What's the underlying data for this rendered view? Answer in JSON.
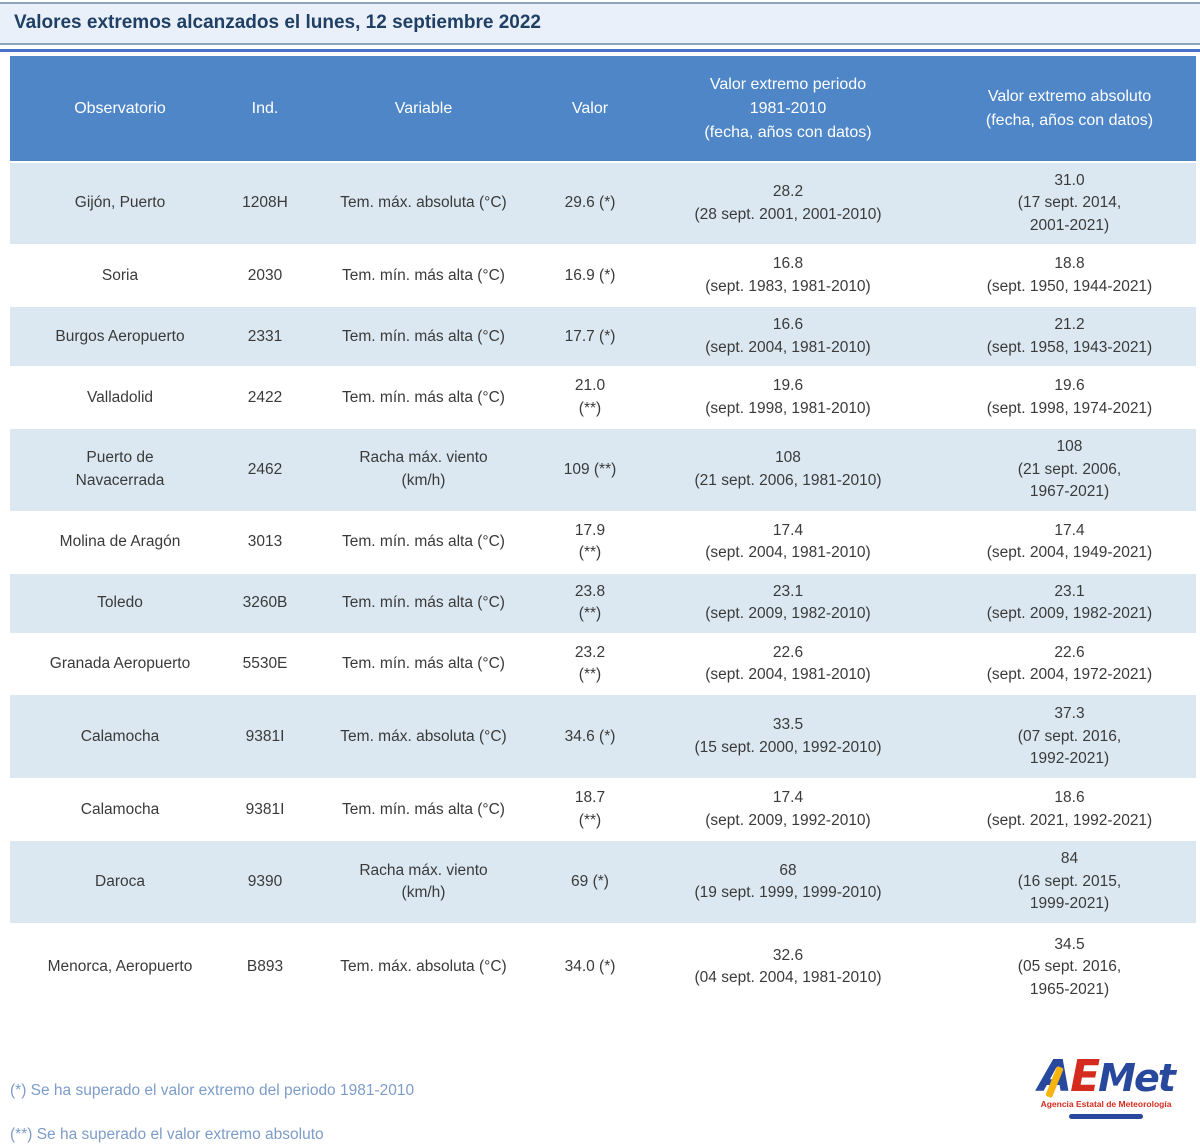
{
  "title": "Valores extremos alcanzados el lunes, 12 septiembre 2022",
  "chart_data": {
    "type": "table",
    "title": "Valores extremos alcanzados el lunes, 12 septiembre 2022",
    "columns": [
      "Observatorio",
      "Ind.",
      "Variable",
      "Valor",
      "Valor extremo periodo\n1981-2010\n(fecha, años con datos)",
      "Valor extremo absoluto\n(fecha, años con datos)"
    ],
    "rows": [
      {
        "observatorio": "Gijón, Puerto",
        "ind": "1208H",
        "variable": "Tem. máx. absoluta (°C)",
        "valor": "29.6 (*)",
        "extremo_periodo": "28.2\n(28 sept. 2001, 2001-2010)",
        "extremo_absoluto": "31.0\n(17 sept. 2014,\n2001-2021)"
      },
      {
        "observatorio": "Soria",
        "ind": "2030",
        "variable": "Tem. mín. más alta (°C)",
        "valor": "16.9 (*)",
        "extremo_periodo": "16.8\n(sept. 1983, 1981-2010)",
        "extremo_absoluto": "18.8\n(sept. 1950, 1944-2021)"
      },
      {
        "observatorio": "Burgos Aeropuerto",
        "ind": "2331",
        "variable": "Tem. mín. más alta (°C)",
        "valor": "17.7 (*)",
        "extremo_periodo": "16.6\n(sept. 2004, 1981-2010)",
        "extremo_absoluto": "21.2\n(sept. 1958, 1943-2021)"
      },
      {
        "observatorio": "Valladolid",
        "ind": "2422",
        "variable": "Tem. mín. más alta (°C)",
        "valor": "21.0\n(**)",
        "extremo_periodo": "19.6\n(sept. 1998, 1981-2010)",
        "extremo_absoluto": "19.6\n(sept. 1998, 1974-2021)"
      },
      {
        "observatorio": "Puerto de\nNavacerrada",
        "ind": "2462",
        "variable": "Racha máx. viento\n(km/h)",
        "valor": "109 (**)",
        "extremo_periodo": "108\n(21 sept. 2006, 1981-2010)",
        "extremo_absoluto": "108\n(21 sept. 2006,\n1967-2021)"
      },
      {
        "observatorio": "Molina de Aragón",
        "ind": "3013",
        "variable": "Tem. mín. más alta (°C)",
        "valor": "17.9\n(**)",
        "extremo_periodo": "17.4\n(sept. 2004, 1981-2010)",
        "extremo_absoluto": "17.4\n(sept. 2004, 1949-2021)"
      },
      {
        "observatorio": "Toledo",
        "ind": "3260B",
        "variable": "Tem. mín. más alta (°C)",
        "valor": "23.8\n(**)",
        "extremo_periodo": "23.1\n(sept. 2009, 1982-2010)",
        "extremo_absoluto": "23.1\n(sept. 2009, 1982-2021)"
      },
      {
        "observatorio": "Granada Aeropuerto",
        "ind": "5530E",
        "variable": "Tem. mín. más alta (°C)",
        "valor": "23.2\n(**)",
        "extremo_periodo": "22.6\n(sept. 2004, 1981-2010)",
        "extremo_absoluto": "22.6\n(sept. 2004, 1972-2021)"
      },
      {
        "observatorio": "Calamocha",
        "ind": "9381I",
        "variable": "Tem. máx. absoluta (°C)",
        "valor": "34.6 (*)",
        "extremo_periodo": "33.5\n(15 sept. 2000, 1992-2010)",
        "extremo_absoluto": "37.3\n(07 sept. 2016,\n1992-2021)"
      },
      {
        "observatorio": "Calamocha",
        "ind": "9381I",
        "variable": "Tem. mín. más alta (°C)",
        "valor": "18.7\n(**)",
        "extremo_periodo": "17.4\n(sept. 2009, 1992-2010)",
        "extremo_absoluto": "18.6\n(sept. 2021, 1992-2021)"
      },
      {
        "observatorio": "Daroca",
        "ind": "9390",
        "variable": "Racha máx. viento\n(km/h)",
        "valor": "69 (*)",
        "extremo_periodo": "68\n(19 sept. 1999, 1999-2010)",
        "extremo_absoluto": "84\n(16 sept. 2015,\n1999-2021)"
      },
      {
        "observatorio": "Menorca, Aeropuerto",
        "ind": "B893",
        "variable": "Tem. máx. absoluta (°C)",
        "valor": "34.0 (*)",
        "extremo_periodo": "32.6\n(04 sept. 2004, 1981-2010)",
        "extremo_absoluto": "34.5\n(05 sept. 2016,\n1965-2021)"
      }
    ]
  },
  "footnotes": {
    "periodo": "(*) Se ha superado el valor extremo del periodo 1981-2010",
    "absoluto": "(**) Se ha superado el valor extremo absoluto"
  },
  "logo": {
    "part_a": "A",
    "part_e": "E",
    "part_met": "Met",
    "tagline": "Agencia Estatal de Meteorología"
  },
  "colors": {
    "header_blue": "#4e86c8",
    "row_light_blue": "#dbe8f1",
    "title_bar_bg": "#e9f0f9",
    "title_text": "#1f4064",
    "rule_blue": "#4673c6",
    "footnote_blue": "#7d9cc9",
    "logo_blue": "#27489c",
    "logo_red": "#d52b1e",
    "logo_yellow": "#f6b40e"
  }
}
